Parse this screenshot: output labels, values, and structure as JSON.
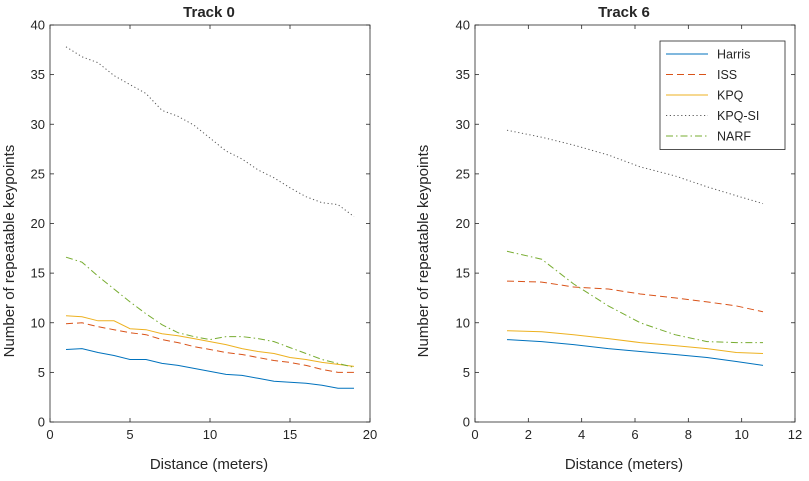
{
  "chart_data": [
    {
      "type": "line",
      "title": "Track 0",
      "xlabel": "Distance (meters)",
      "ylabel": "Number of repeatable keypoints",
      "xlim": [
        0,
        20
      ],
      "ylim": [
        0,
        40
      ],
      "xticks": [
        0,
        5,
        10,
        15,
        20
      ],
      "yticks": [
        0,
        5,
        10,
        15,
        20,
        25,
        30,
        35,
        40
      ],
      "grid": false,
      "legend": false,
      "series": [
        {
          "name": "Harris",
          "color": "#0072BD",
          "dash": "solid",
          "x": [
            1,
            2,
            3,
            4,
            5,
            6,
            7,
            8,
            9,
            10,
            11,
            12,
            13,
            14,
            15,
            16,
            17,
            18,
            19
          ],
          "y": [
            7.3,
            7.4,
            7.0,
            6.7,
            6.3,
            6.3,
            5.9,
            5.7,
            5.4,
            5.1,
            4.8,
            4.7,
            4.4,
            4.1,
            4.0,
            3.9,
            3.7,
            3.4,
            3.4
          ]
        },
        {
          "name": "ISS",
          "color": "#D95319",
          "dash": "dashed",
          "x": [
            1,
            2,
            3,
            4,
            5,
            6,
            7,
            8,
            9,
            10,
            11,
            12,
            13,
            14,
            15,
            16,
            17,
            18,
            19
          ],
          "y": [
            9.9,
            10.0,
            9.6,
            9.3,
            9.0,
            8.8,
            8.3,
            8.0,
            7.6,
            7.3,
            7.0,
            6.8,
            6.5,
            6.2,
            6.0,
            5.7,
            5.3,
            5.0,
            5.0
          ]
        },
        {
          "name": "KPQ",
          "color": "#EDB120",
          "dash": "solid",
          "x": [
            1,
            2,
            3,
            4,
            5,
            6,
            7,
            8,
            9,
            10,
            11,
            12,
            13,
            14,
            15,
            16,
            17,
            18,
            19
          ],
          "y": [
            10.7,
            10.6,
            10.2,
            10.2,
            9.4,
            9.3,
            8.9,
            8.7,
            8.4,
            8.1,
            7.8,
            7.4,
            7.1,
            6.9,
            6.5,
            6.3,
            6.0,
            5.8,
            5.6
          ]
        },
        {
          "name": "KPQ-SI",
          "color": "#595959",
          "dash": "dotted",
          "x": [
            1,
            2,
            3,
            4,
            5,
            6,
            7,
            8,
            9,
            10,
            11,
            12,
            13,
            14,
            15,
            16,
            17,
            18,
            19
          ],
          "y": [
            37.8,
            36.8,
            36.2,
            34.9,
            34.0,
            33.1,
            31.4,
            30.8,
            29.9,
            28.6,
            27.3,
            26.5,
            25.4,
            24.6,
            23.6,
            22.7,
            22.1,
            21.9,
            20.7
          ]
        },
        {
          "name": "NARF",
          "color": "#77AC30",
          "dash": "dashdot",
          "x": [
            1,
            2,
            3,
            4,
            5,
            6,
            7,
            8,
            9,
            10,
            11,
            12,
            13,
            14,
            15,
            16,
            17,
            18,
            19
          ],
          "y": [
            16.6,
            16.1,
            14.7,
            13.4,
            12.1,
            10.9,
            9.8,
            9.0,
            8.6,
            8.3,
            8.6,
            8.6,
            8.4,
            8.1,
            7.5,
            6.9,
            6.3,
            5.9,
            5.5
          ]
        }
      ]
    },
    {
      "type": "line",
      "title": "Track 6",
      "xlabel": "Distance (meters)",
      "ylabel": "Number of repeatable keypoints",
      "xlim": [
        0,
        12
      ],
      "ylim": [
        0,
        40
      ],
      "xticks": [
        0,
        2,
        4,
        6,
        8,
        10,
        12
      ],
      "yticks": [
        0,
        5,
        10,
        15,
        20,
        25,
        30,
        35,
        40
      ],
      "grid": false,
      "legend": true,
      "legend_position": "top-right",
      "series": [
        {
          "name": "Harris",
          "color": "#0072BD",
          "dash": "solid",
          "x": [
            1.2,
            2.5,
            3.7,
            5.0,
            6.2,
            7.5,
            8.7,
            9.8,
            10.8
          ],
          "y": [
            8.3,
            8.1,
            7.8,
            7.4,
            7.1,
            6.8,
            6.5,
            6.1,
            5.7
          ]
        },
        {
          "name": "ISS",
          "color": "#D95319",
          "dash": "dashed",
          "x": [
            1.2,
            2.5,
            3.7,
            5.0,
            6.2,
            7.5,
            8.7,
            9.8,
            10.8
          ],
          "y": [
            14.2,
            14.1,
            13.6,
            13.4,
            12.9,
            12.5,
            12.1,
            11.7,
            11.1
          ]
        },
        {
          "name": "KPQ",
          "color": "#EDB120",
          "dash": "solid",
          "x": [
            1.2,
            2.5,
            3.7,
            5.0,
            6.2,
            7.5,
            8.7,
            9.8,
            10.8
          ],
          "y": [
            9.2,
            9.1,
            8.8,
            8.4,
            8.0,
            7.7,
            7.4,
            7.0,
            6.9
          ]
        },
        {
          "name": "KPQ-SI",
          "color": "#595959",
          "dash": "dotted",
          "x": [
            1.2,
            2.5,
            3.7,
            5.0,
            6.2,
            7.5,
            8.7,
            9.8,
            10.8
          ],
          "y": [
            29.4,
            28.7,
            27.9,
            26.9,
            25.7,
            24.8,
            23.7,
            22.8,
            22.0
          ]
        },
        {
          "name": "NARF",
          "color": "#77AC30",
          "dash": "dashdot",
          "x": [
            1.2,
            2.5,
            3.7,
            5.0,
            6.2,
            7.5,
            8.7,
            9.8,
            10.8
          ],
          "y": [
            17.2,
            16.4,
            13.9,
            11.7,
            10.0,
            8.8,
            8.1,
            8.0,
            8.0
          ]
        }
      ]
    }
  ]
}
